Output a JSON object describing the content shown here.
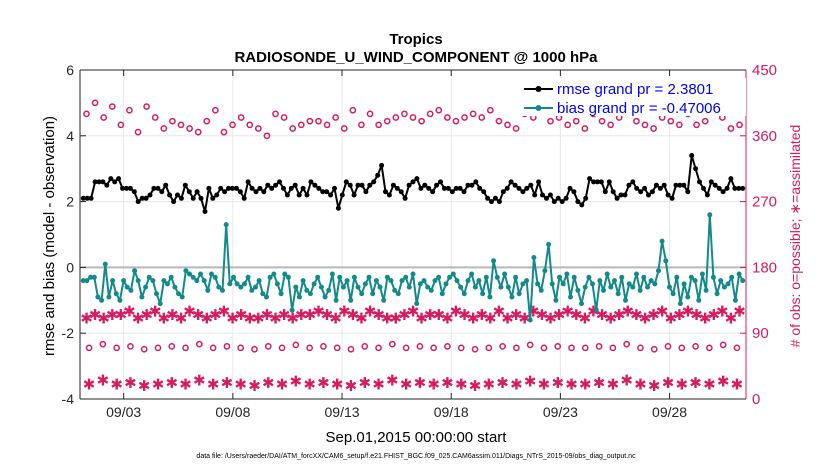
{
  "chart_data": {
    "type": "line",
    "title": "Tropics",
    "subtitle": "RADIOSONDE_U_WIND_COMPONENT @ 1000 hPa",
    "xlabel": "Sep.01,2015 00:00:00 start",
    "ylabel": "rmse and bias (model - observation)",
    "ylabel_right": "# of obs: o=possible; ∗=assimilated",
    "ylim": [
      -4,
      6
    ],
    "ylim_right": [
      0,
      450
    ],
    "xlim": [
      0.0,
      30.5
    ],
    "yticks": [
      "-4",
      "-2",
      "0",
      "2",
      "4",
      "6"
    ],
    "yticks_right": [
      "0",
      "90",
      "180",
      "270",
      "360",
      "450"
    ],
    "xtick_labels": [
      {
        "day": 2.0,
        "label": "09/03"
      },
      {
        "day": 7.0,
        "label": "09/08"
      },
      {
        "day": 12.0,
        "label": "09/13"
      },
      {
        "day": 17.0,
        "label": "09/18"
      },
      {
        "day": 22.0,
        "label": "09/23"
      },
      {
        "day": 27.0,
        "label": "09/28"
      }
    ],
    "x_spacing_days": 0.25,
    "x_start_day": 0.1,
    "zero_line": 0,
    "series": [
      {
        "name": "rmse grand pr = 2.3801",
        "color": "#000000",
        "axis": "left",
        "values": [
          2.1,
          2.1,
          2.1,
          2.6,
          2.6,
          2.6,
          2.5,
          2.7,
          2.6,
          2.7,
          2.4,
          2.4,
          2.4,
          2.3,
          2.0,
          2.1,
          2.1,
          2.2,
          2.4,
          2.4,
          2.3,
          2.5,
          2.2,
          2.0,
          2.2,
          2.1,
          2.5,
          2.3,
          2.1,
          2.3,
          2.1,
          1.7,
          2.4,
          2.1,
          2.2,
          2.4,
          2.3,
          2.4,
          2.4,
          2.4,
          2.3,
          2.1,
          2.6,
          2.4,
          2.3,
          2.4,
          2.3,
          2.5,
          2.4,
          2.5,
          2.6,
          2.4,
          2.2,
          2.4,
          2.5,
          2.2,
          2.4,
          2.2,
          2.6,
          2.5,
          2.4,
          2.3,
          2.3,
          2.2,
          2.4,
          1.8,
          2.2,
          2.6,
          2.5,
          2.2,
          2.5,
          2.5,
          2.3,
          2.5,
          2.6,
          2.8,
          3.1,
          2.3,
          2.2,
          2.5,
          2.4,
          2.3,
          2.1,
          2.5,
          2.6,
          2.7,
          2.4,
          2.5,
          2.4,
          2.3,
          2.5,
          2.6,
          2.4,
          2.4,
          2.3,
          2.4,
          2.4,
          2.3,
          2.5,
          2.5,
          2.6,
          2.4,
          2.3,
          2.1,
          2.0,
          2.1,
          2.0,
          2.3,
          2.4,
          2.6,
          2.5,
          2.4,
          2.3,
          2.4,
          2.5,
          2.2,
          2.6,
          2.2,
          2.1,
          2.2,
          2.0,
          2.1,
          2.0,
          2.1,
          2.4,
          2.3,
          2.0,
          1.9,
          2.1,
          2.7,
          2.6,
          2.6,
          2.6,
          2.3,
          2.6,
          2.3,
          2.1,
          2.2,
          2.2,
          2.5,
          2.6,
          2.4,
          2.3,
          2.4,
          2.2,
          2.3,
          2.5,
          2.4,
          2.5,
          2.2,
          2.1,
          2.5,
          2.5,
          2.5,
          2.3,
          3.4,
          3.0,
          2.6,
          2.4,
          2.2,
          2.6,
          2.5,
          2.4,
          2.3,
          2.4,
          2.7,
          2.4,
          2.4,
          2.4
        ]
      },
      {
        "name": "bias grand pr = -0.47006",
        "color": "#138a8a",
        "axis": "left",
        "values": [
          -0.4,
          -0.4,
          -0.3,
          -0.3,
          -0.9,
          -1.0,
          0.1,
          -0.9,
          -0.4,
          -0.8,
          -1.0,
          -0.4,
          -0.6,
          -0.7,
          -0.1,
          -0.4,
          -0.9,
          -0.6,
          -0.3,
          -0.4,
          -0.8,
          -1.1,
          -0.4,
          -0.5,
          -0.3,
          -0.6,
          -0.8,
          -0.9,
          -0.1,
          -0.2,
          -0.3,
          -0.4,
          -0.2,
          -0.4,
          -0.7,
          -0.2,
          -0.3,
          -0.6,
          -0.7,
          1.3,
          -0.5,
          -0.3,
          -0.5,
          -0.6,
          -0.5,
          -0.3,
          -0.7,
          -0.6,
          -0.4,
          -0.8,
          -0.9,
          -0.3,
          -0.2,
          -0.5,
          -0.8,
          -0.2,
          -0.3,
          -1.3,
          -0.6,
          -0.9,
          -0.4,
          -0.7,
          -0.8,
          -0.5,
          -0.3,
          -0.6,
          -0.9,
          -0.7,
          -0.2,
          -1.0,
          -0.3,
          -0.6,
          -0.4,
          -1.0,
          -0.3,
          -0.6,
          -0.8,
          -0.5,
          -0.3,
          -0.8,
          -0.4,
          -0.6,
          -1.0,
          -0.3,
          -0.4,
          -0.7,
          -0.8,
          -0.4,
          -0.3,
          -0.6,
          -0.2,
          -1.1,
          -0.5,
          -0.4,
          -0.6,
          -0.7,
          -0.4,
          -0.3,
          -0.8,
          -0.5,
          -0.3,
          -0.2,
          -0.4,
          -0.6,
          -0.8,
          -0.4,
          -0.2,
          -0.6,
          -0.4,
          -0.8,
          -0.3,
          -0.9,
          0.2,
          -0.3,
          -0.6,
          -0.2,
          -0.6,
          -0.9,
          -0.3,
          -0.8,
          -0.5,
          -0.4,
          -1.6,
          0.3,
          -0.5,
          -0.7,
          -0.1,
          0.7,
          -0.5,
          -1.0,
          -0.3,
          -0.5,
          -0.2,
          -0.9,
          -0.3,
          -0.7,
          -1.1,
          -0.6,
          -0.3,
          -0.5,
          -1.3,
          -0.4,
          -0.7,
          -0.2,
          -0.6,
          -0.4,
          -0.8,
          -0.3,
          -1.0,
          -0.5,
          -0.6,
          -0.2,
          -0.7,
          -0.3,
          -0.6,
          -0.4,
          -0.5,
          -0.1,
          0.8,
          0.2,
          -0.6,
          -0.8,
          -0.3,
          -1.1,
          -0.5,
          -0.9,
          -0.3,
          -0.4,
          -1.0,
          -0.2,
          -0.7,
          1.6,
          -0.3,
          -0.8,
          -0.4,
          -0.6,
          -0.5,
          -0.3,
          -1.0,
          -0.2,
          -0.4
        ]
      }
    ],
    "counts": [
      {
        "name": "possible (upper)",
        "marker": "o",
        "axis": "right",
        "values": [
          390,
          405,
          385,
          400,
          375,
          395,
          365,
          400,
          385,
          370,
          380,
          375,
          370,
          365,
          380,
          395,
          365,
          375,
          385,
          375,
          370,
          360,
          390,
          385,
          370,
          375,
          380,
          380,
          375,
          385,
          370,
          395,
          375,
          390,
          375,
          380,
          385,
          390,
          385,
          380,
          390,
          395,
          385,
          380,
          385,
          390,
          385,
          395,
          380,
          375,
          370,
          390,
          385,
          395,
          380,
          385,
          375,
          380,
          370,
          390,
          380,
          375,
          385,
          395,
          380,
          375,
          370,
          385,
          380,
          375,
          390,
          375,
          380,
          395,
          385,
          370,
          375
        ]
      },
      {
        "name": "assimilated (upper)",
        "marker": "*",
        "axis": "right",
        "values": [
          110,
          115,
          110,
          115,
          115,
          120,
          110,
          115,
          120,
          110,
          115,
          110,
          120,
          115,
          110,
          115,
          120,
          110,
          115,
          110,
          110,
          115,
          110,
          115,
          110,
          115,
          115,
          120,
          115,
          110,
          120,
          115,
          110,
          120,
          115,
          110,
          110,
          115,
          120,
          110,
          115,
          115,
          110,
          120,
          115,
          110,
          115,
          110,
          120,
          110,
          115,
          110,
          120,
          115,
          110,
          115,
          120,
          115,
          110,
          120,
          115,
          110,
          115,
          120,
          115,
          110,
          115,
          120,
          110,
          115,
          120,
          115,
          110,
          115,
          120,
          110,
          120
        ]
      },
      {
        "name": "possible (lower)",
        "marker": "o",
        "axis": "right",
        "values": [
          70,
          75,
          70,
          72,
          68,
          70,
          72,
          70,
          75,
          70,
          72,
          70,
          68,
          72,
          70,
          74,
          70,
          72,
          70,
          68,
          72,
          70,
          75,
          70,
          72,
          70,
          72,
          70,
          68,
          70,
          72,
          70,
          74,
          70,
          72,
          70,
          70,
          72,
          70,
          75,
          70,
          68,
          72,
          70,
          72,
          70,
          74,
          70
        ]
      },
      {
        "name": "assimilated (lower)",
        "marker": "*",
        "axis": "right",
        "values": [
          20,
          25,
          20,
          22,
          18,
          20,
          22,
          20,
          25,
          20,
          22,
          20,
          18,
          22,
          20,
          24,
          20,
          22,
          20,
          18,
          22,
          20,
          25,
          20,
          22,
          20,
          22,
          20,
          18,
          20,
          22,
          20,
          24,
          20,
          22,
          20,
          20,
          22,
          20,
          25,
          20,
          18,
          22,
          20,
          22,
          20,
          24,
          20
        ]
      }
    ],
    "legend": {
      "location": "top-right",
      "entries": [
        "rmse grand pr = 2.3801",
        "bias grand pr = -0.47006"
      ]
    },
    "footnote": "data file: /Users/raeder/DAI/ATM_forcXX/CAM6_setup/f.e21.FHIST_BGC.f09_025.CAM6assim.011/Diags_NTrS_2015-09/obs_diag_output.nc"
  }
}
